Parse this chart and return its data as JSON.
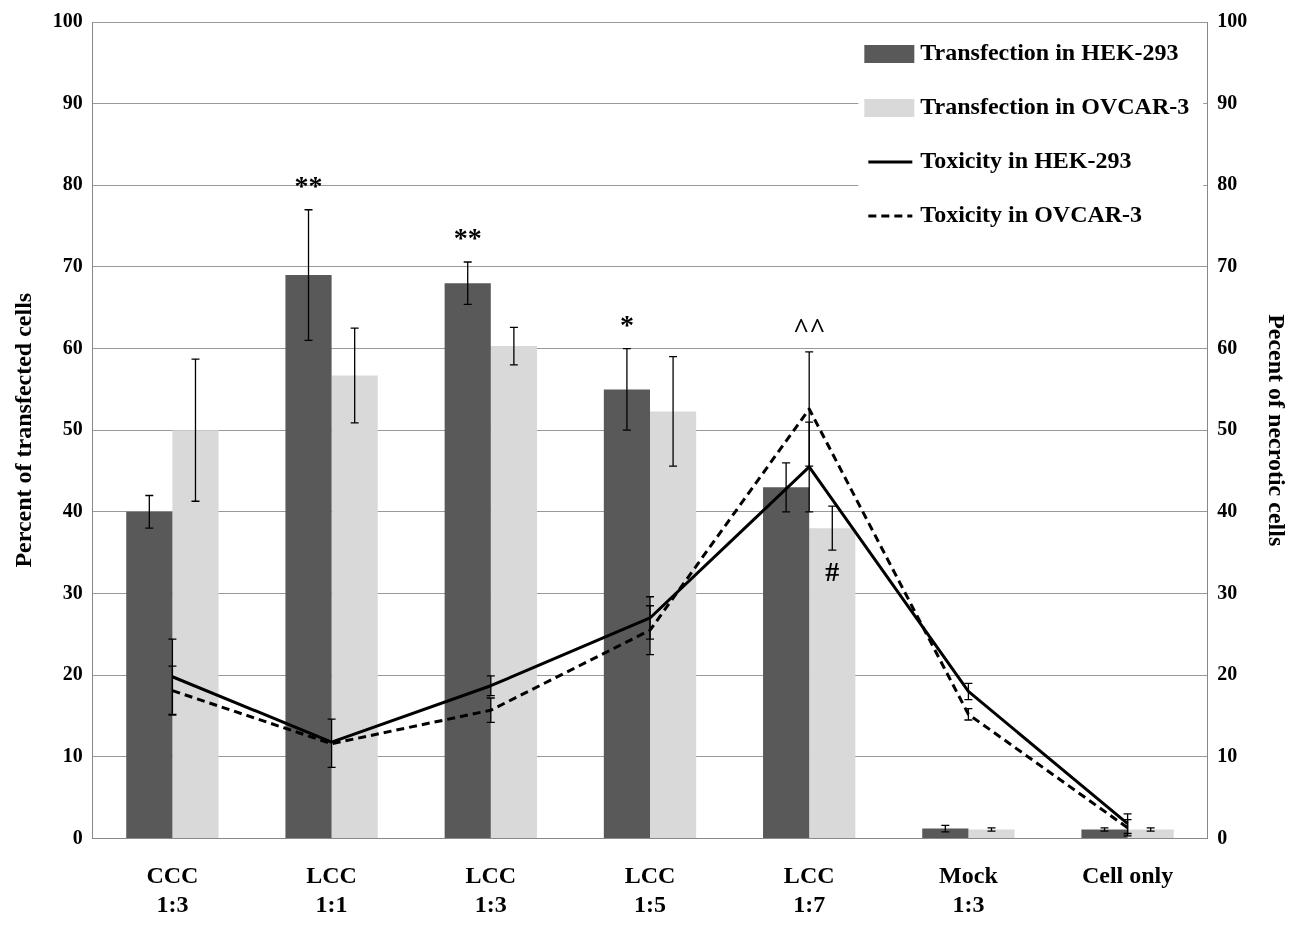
{
  "chart_data": {
    "type": "bar",
    "ylabel": "Percent of transfected cells",
    "y2label": "Pecent of necrotic cells",
    "categories": [
      "CCC\n1:3",
      "LCC\n1:1",
      "LCC\n1:3",
      "LCC\n1:5",
      "LCC\n1:7",
      "Mock\n1:3",
      "Cell only"
    ],
    "series": [
      {
        "name": "Transfection in HEK-293",
        "color": "#595959",
        "values": [
          40,
          69,
          68,
          55,
          43,
          1.2,
          1.1
        ],
        "errors": [
          2,
          8,
          2.6,
          5,
          3,
          0.4,
          0.2
        ]
      },
      {
        "name": "Transfection in OVCAR-3",
        "color": "#d9d9d9",
        "values": [
          50,
          56.7,
          60.3,
          52.3,
          38,
          1.1,
          1.1
        ],
        "errors": [
          8.7,
          5.8,
          2.3,
          6.7,
          2.7,
          0.2,
          0.2
        ]
      },
      {
        "name": "Toxicity in HEK-293",
        "type": "line",
        "axis": "y2",
        "line_style": "solid",
        "color": "#000000",
        "values": [
          19.8,
          11.8,
          18.7,
          27,
          45.5,
          18,
          1.8
        ],
        "errors": [
          4.6,
          [
            8.7,
            14.6
          ],
          1.2,
          2.6,
          5.5,
          1,
          1.2
        ]
      },
      {
        "name": "Toxicity in OVCAR-3",
        "type": "line",
        "axis": "y2",
        "line_style": "dashed",
        "color": "#000000",
        "values": [
          18.1,
          11.6,
          15.7,
          25.5,
          52.6,
          15.2,
          1.3
        ],
        "errors": [
          3,
          null,
          1.5,
          3,
          7,
          0.7,
          1
        ]
      }
    ],
    "ylim": [
      0,
      100
    ],
    "yticks": [
      0,
      10,
      20,
      30,
      40,
      50,
      60,
      70,
      80,
      90,
      100
    ],
    "y2lim": [
      0,
      100
    ],
    "y2ticks": [
      0,
      10,
      20,
      30,
      40,
      50,
      60,
      70,
      80,
      90,
      100
    ],
    "grid": "y",
    "legend": "top right",
    "marker": "none",
    "annotations": [
      {
        "text": "**",
        "x": "LCC\n1:1",
        "y": 69
      },
      {
        "text": "**",
        "x": "LCC\n1:3",
        "y": 68
      },
      {
        "text": "*",
        "x": "LCC\n1:5",
        "y": 55
      },
      {
        "text": "^^",
        "x": "LCC\n1:7",
        "y": 52.6
      },
      {
        "text": "#",
        "x": "LCC\n1:7",
        "y": 38
      }
    ]
  }
}
